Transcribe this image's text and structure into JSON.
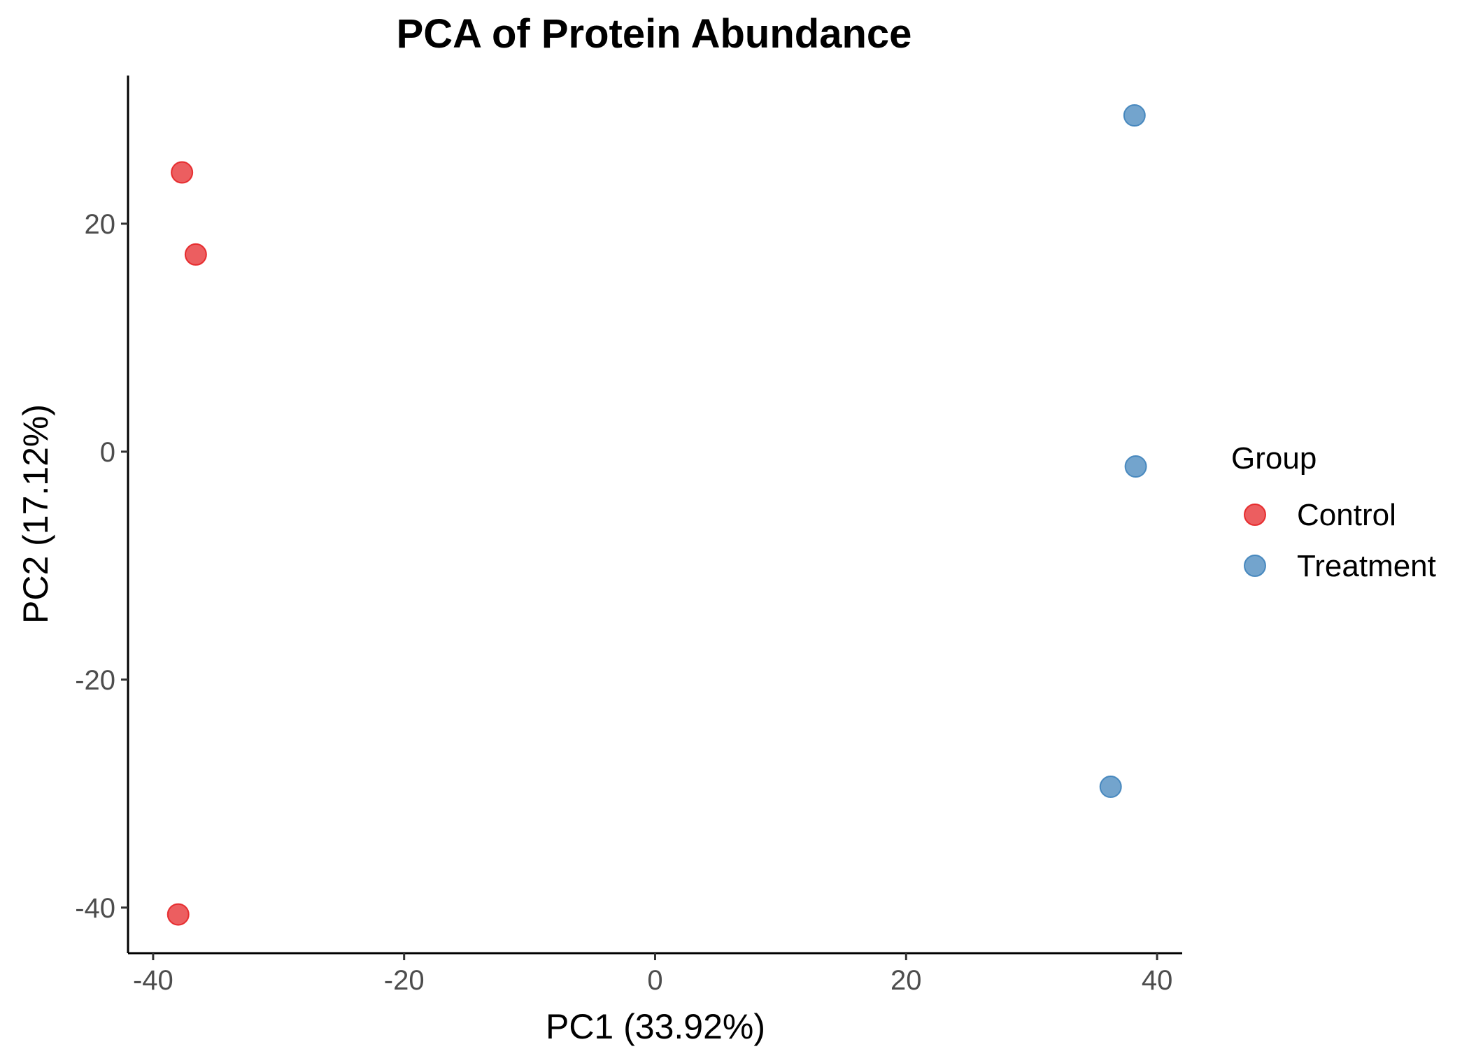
{
  "chart_data": {
    "type": "scatter",
    "title": "PCA of Protein Abundance",
    "xlabel": "PC1 (33.92%)",
    "ylabel": "PC2 (17.12%)",
    "xlim": [
      -42,
      42
    ],
    "ylim": [
      -44,
      33
    ],
    "xticks": [
      -40,
      -20,
      0,
      20,
      40
    ],
    "yticks": [
      -40,
      -20,
      0,
      20
    ],
    "xtick_labels": [
      "-40",
      "-20",
      "0",
      "20",
      "40"
    ],
    "ytick_labels": [
      "-40",
      "-20",
      "0",
      "20"
    ],
    "grid": false,
    "legend": {
      "title": "Group",
      "position": "right",
      "entries": [
        "Control",
        "Treatment"
      ]
    },
    "series": [
      {
        "name": "Control",
        "color": "#E41A1C",
        "points": [
          {
            "x": -37.7,
            "y": 24.5
          },
          {
            "x": -36.6,
            "y": 17.3
          },
          {
            "x": -38.0,
            "y": -40.6
          }
        ]
      },
      {
        "name": "Treatment",
        "color": "#377EB8",
        "points": [
          {
            "x": 38.2,
            "y": 29.5
          },
          {
            "x": 38.3,
            "y": -1.3
          },
          {
            "x": 36.3,
            "y": -29.4
          }
        ]
      }
    ]
  }
}
